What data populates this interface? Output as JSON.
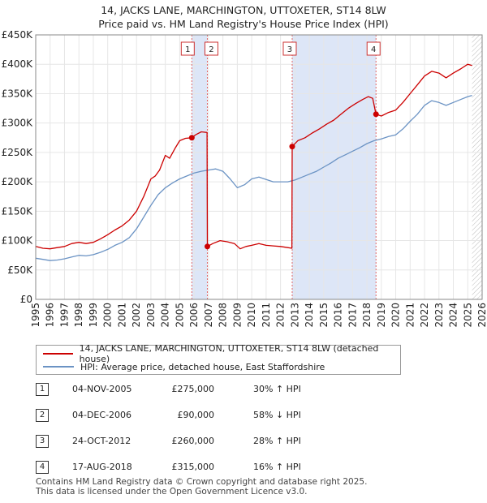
{
  "title_line1": "14, JACKS LANE, MARCHINGTON, UTTOXETER, ST14 8LW",
  "title_line2": "Price paid vs. HM Land Registry's House Price Index (HPI)",
  "chart_data": {
    "type": "line",
    "x_range": [
      1995,
      2026
    ],
    "ylim": [
      0,
      450000
    ],
    "y_ticks": [
      {
        "value": 0,
        "label": "£0"
      },
      {
        "value": 50000,
        "label": "£50K"
      },
      {
        "value": 100000,
        "label": "£100K"
      },
      {
        "value": 150000,
        "label": "£150K"
      },
      {
        "value": 200000,
        "label": "£200K"
      },
      {
        "value": 250000,
        "label": "£250K"
      },
      {
        "value": 300000,
        "label": "£300K"
      },
      {
        "value": 350000,
        "label": "£350K"
      },
      {
        "value": 400000,
        "label": "£400K"
      },
      {
        "value": 450000,
        "label": "£450K"
      }
    ],
    "x_ticks": [
      "1995",
      "1996",
      "1997",
      "1998",
      "1999",
      "2000",
      "2001",
      "2002",
      "2003",
      "2004",
      "2005",
      "2006",
      "2007",
      "2008",
      "2009",
      "2010",
      "2011",
      "2012",
      "2013",
      "2014",
      "2015",
      "2016",
      "2017",
      "2018",
      "2019",
      "2020",
      "2021",
      "2022",
      "2023",
      "2024",
      "2025",
      "2026"
    ],
    "grid": true,
    "data_end_year": 2025.3,
    "shaded_periods": [
      [
        2005.84,
        2006.92
      ],
      [
        2012.81,
        2018.63
      ]
    ],
    "series": [
      {
        "name": "14, JACKS LANE, MARCHINGTON, UTTOXETER, ST14 8LW (detached house)",
        "color": "#cc0000",
        "points": [
          [
            1995.0,
            90000
          ],
          [
            1995.5,
            87000
          ],
          [
            1996.0,
            86000
          ],
          [
            1996.5,
            88000
          ],
          [
            1997.0,
            90000
          ],
          [
            1997.5,
            95000
          ],
          [
            1998.0,
            97000
          ],
          [
            1998.5,
            95000
          ],
          [
            1999.0,
            97000
          ],
          [
            1999.5,
            103000
          ],
          [
            2000.0,
            110000
          ],
          [
            2000.5,
            118000
          ],
          [
            2001.0,
            125000
          ],
          [
            2001.5,
            135000
          ],
          [
            2002.0,
            150000
          ],
          [
            2002.5,
            175000
          ],
          [
            2003.0,
            205000
          ],
          [
            2003.3,
            210000
          ],
          [
            2003.6,
            220000
          ],
          [
            2004.0,
            245000
          ],
          [
            2004.3,
            240000
          ],
          [
            2004.7,
            258000
          ],
          [
            2005.0,
            270000
          ],
          [
            2005.4,
            274000
          ],
          [
            2005.84,
            275000
          ],
          [
            2006.1,
            280000
          ],
          [
            2006.5,
            285000
          ],
          [
            2006.9,
            284000
          ],
          [
            2006.92,
            90000
          ],
          [
            2007.3,
            95000
          ],
          [
            2007.8,
            100000
          ],
          [
            2008.3,
            98000
          ],
          [
            2008.8,
            95000
          ],
          [
            2009.2,
            86000
          ],
          [
            2009.6,
            90000
          ],
          [
            2010.0,
            92000
          ],
          [
            2010.5,
            95000
          ],
          [
            2011.0,
            92000
          ],
          [
            2011.5,
            91000
          ],
          [
            2012.0,
            90000
          ],
          [
            2012.5,
            88000
          ],
          [
            2012.79,
            87000
          ],
          [
            2012.81,
            260000
          ],
          [
            2013.2,
            270000
          ],
          [
            2013.7,
            275000
          ],
          [
            2014.2,
            283000
          ],
          [
            2014.7,
            290000
          ],
          [
            2015.2,
            298000
          ],
          [
            2015.7,
            305000
          ],
          [
            2016.2,
            315000
          ],
          [
            2016.7,
            325000
          ],
          [
            2017.2,
            333000
          ],
          [
            2017.7,
            340000
          ],
          [
            2018.1,
            345000
          ],
          [
            2018.4,
            342000
          ],
          [
            2018.63,
            315000
          ],
          [
            2019.0,
            312000
          ],
          [
            2019.5,
            318000
          ],
          [
            2020.0,
            322000
          ],
          [
            2020.5,
            335000
          ],
          [
            2021.0,
            350000
          ],
          [
            2021.5,
            365000
          ],
          [
            2022.0,
            380000
          ],
          [
            2022.5,
            388000
          ],
          [
            2023.0,
            385000
          ],
          [
            2023.5,
            377000
          ],
          [
            2024.0,
            385000
          ],
          [
            2024.5,
            392000
          ],
          [
            2025.0,
            400000
          ],
          [
            2025.3,
            398000
          ]
        ]
      },
      {
        "name": "HPI: Average price, detached house, East Staffordshire",
        "color": "#6b93c4",
        "points": [
          [
            1995.0,
            70000
          ],
          [
            1995.5,
            68000
          ],
          [
            1996.0,
            66000
          ],
          [
            1996.5,
            67000
          ],
          [
            1997.0,
            69000
          ],
          [
            1997.5,
            72000
          ],
          [
            1998.0,
            75000
          ],
          [
            1998.5,
            74000
          ],
          [
            1999.0,
            76000
          ],
          [
            1999.5,
            80000
          ],
          [
            2000.0,
            85000
          ],
          [
            2000.5,
            92000
          ],
          [
            2001.0,
            97000
          ],
          [
            2001.5,
            105000
          ],
          [
            2002.0,
            120000
          ],
          [
            2002.5,
            140000
          ],
          [
            2003.0,
            160000
          ],
          [
            2003.5,
            178000
          ],
          [
            2004.0,
            190000
          ],
          [
            2004.5,
            198000
          ],
          [
            2005.0,
            205000
          ],
          [
            2005.5,
            210000
          ],
          [
            2006.0,
            215000
          ],
          [
            2006.5,
            218000
          ],
          [
            2007.0,
            220000
          ],
          [
            2007.5,
            222000
          ],
          [
            2008.0,
            218000
          ],
          [
            2008.5,
            205000
          ],
          [
            2009.0,
            190000
          ],
          [
            2009.5,
            195000
          ],
          [
            2010.0,
            205000
          ],
          [
            2010.5,
            208000
          ],
          [
            2011.0,
            204000
          ],
          [
            2011.5,
            200000
          ],
          [
            2012.0,
            200000
          ],
          [
            2012.5,
            200000
          ],
          [
            2013.0,
            203000
          ],
          [
            2013.5,
            208000
          ],
          [
            2014.0,
            213000
          ],
          [
            2014.5,
            218000
          ],
          [
            2015.0,
            225000
          ],
          [
            2015.5,
            232000
          ],
          [
            2016.0,
            240000
          ],
          [
            2016.5,
            246000
          ],
          [
            2017.0,
            252000
          ],
          [
            2017.5,
            258000
          ],
          [
            2018.0,
            265000
          ],
          [
            2018.5,
            270000
          ],
          [
            2019.0,
            273000
          ],
          [
            2019.5,
            277000
          ],
          [
            2020.0,
            280000
          ],
          [
            2020.5,
            290000
          ],
          [
            2021.0,
            303000
          ],
          [
            2021.5,
            315000
          ],
          [
            2022.0,
            330000
          ],
          [
            2022.5,
            338000
          ],
          [
            2023.0,
            335000
          ],
          [
            2023.5,
            330000
          ],
          [
            2024.0,
            335000
          ],
          [
            2024.5,
            340000
          ],
          [
            2025.0,
            345000
          ],
          [
            2025.3,
            347000
          ]
        ]
      }
    ],
    "sales": [
      {
        "id": "1",
        "x": 2005.84,
        "price": 275000,
        "date": "04-NOV-2005",
        "price_label": "£275,000",
        "hpi": "30% ↑ HPI"
      },
      {
        "id": "2",
        "x": 2006.92,
        "price": 90000,
        "date": "04-DEC-2006",
        "price_label": "£90,000",
        "hpi": "58% ↓ HPI"
      },
      {
        "id": "3",
        "x": 2012.81,
        "price": 260000,
        "date": "24-OCT-2012",
        "price_label": "£260,000",
        "hpi": "28% ↑ HPI"
      },
      {
        "id": "4",
        "x": 2018.63,
        "price": 315000,
        "date": "17-AUG-2018",
        "price_label": "£315,000",
        "hpi": "16% ↑ HPI"
      }
    ]
  },
  "legend": {
    "property_label": "14, JACKS LANE, MARCHINGTON, UTTOXETER, ST14 8LW (detached house)",
    "hpi_label": "HPI: Average price, detached house, East Staffordshire"
  },
  "sales_table": {
    "rows": [
      {
        "num": "1",
        "date": "04-NOV-2005",
        "price": "£275,000",
        "hpi": "30% ↑ HPI"
      },
      {
        "num": "2",
        "date": "04-DEC-2006",
        "price": "£90,000",
        "hpi": "58% ↓ HPI"
      },
      {
        "num": "3",
        "date": "24-OCT-2012",
        "price": "£260,000",
        "hpi": "28% ↑ HPI"
      },
      {
        "num": "4",
        "date": "17-AUG-2018",
        "price": "£315,000",
        "hpi": "16% ↑ HPI"
      }
    ]
  },
  "footer": {
    "line1": "Contains HM Land Registry data © Crown copyright and database right 2025.",
    "line2": "This data is licensed under the Open Government Licence v3.0."
  },
  "colors": {
    "property_line": "#cc0000",
    "hpi_line": "#6b93c4",
    "shade": "#dde6f7",
    "sale_marker_line": "#e06666"
  }
}
